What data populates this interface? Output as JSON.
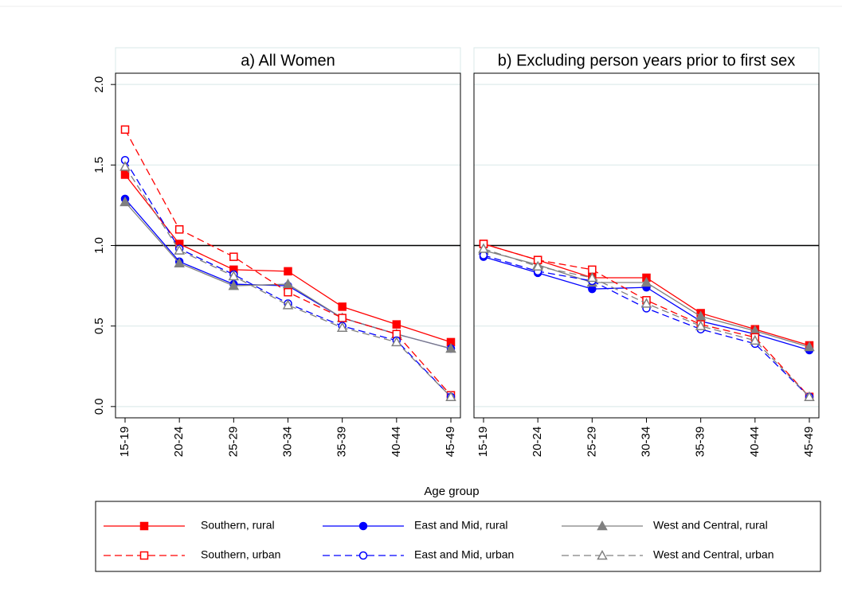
{
  "chart_data": [
    {
      "type": "line",
      "title": "a) All Women",
      "xlabel": "Age group",
      "categories": [
        "15-19",
        "20-24",
        "25-29",
        "30-34",
        "35-39",
        "40-44",
        "45-49"
      ],
      "ylim": [
        -0.07,
        2.07
      ],
      "yticks": [
        {
          "value": 0,
          "label": "0.0"
        },
        {
          "value": 0.5,
          "label": "0.5"
        },
        {
          "value": 1,
          "label": "1.0"
        },
        {
          "value": 1.5,
          "label": "1.5"
        },
        {
          "value": 2,
          "label": "2.0"
        }
      ],
      "grid": true,
      "reference_line": 1,
      "series": [
        {
          "name": "Southern, rural",
          "color": "#ff0000",
          "marker": "square",
          "filled": true,
          "dashed": false,
          "values": [
            1.44,
            1.01,
            0.85,
            0.84,
            0.62,
            0.51,
            0.4
          ]
        },
        {
          "name": "East and Mid, rural",
          "color": "#0000ff",
          "marker": "circle",
          "filled": true,
          "dashed": false,
          "values": [
            1.29,
            0.9,
            0.76,
            0.75,
            0.55,
            0.45,
            0.36
          ]
        },
        {
          "name": "West and Central, rural",
          "color": "#808080",
          "marker": "triangle",
          "filled": true,
          "dashed": false,
          "values": [
            1.27,
            0.89,
            0.75,
            0.76,
            0.55,
            0.45,
            0.36
          ]
        },
        {
          "name": "Southern, urban",
          "color": "#ff0000",
          "marker": "square",
          "filled": false,
          "dashed": true,
          "values": [
            1.72,
            1.1,
            0.93,
            0.71,
            0.55,
            0.45,
            0.07
          ]
        },
        {
          "name": "East and Mid, urban",
          "color": "#0000ff",
          "marker": "circle",
          "filled": false,
          "dashed": true,
          "values": [
            1.53,
            0.98,
            0.82,
            0.64,
            0.5,
            0.41,
            0.06
          ]
        },
        {
          "name": "West and Central, urban",
          "color": "#808080",
          "marker": "triangle",
          "filled": false,
          "dashed": true,
          "values": [
            1.49,
            0.97,
            0.81,
            0.63,
            0.49,
            0.4,
            0.06
          ]
        }
      ]
    },
    {
      "type": "line",
      "title": "b) Excluding person years prior to first sex",
      "categories": [
        "15-19",
        "20-24",
        "25-29",
        "30-34",
        "35-39",
        "40-44",
        "45-49"
      ],
      "ylim": [
        -0.07,
        2.07
      ],
      "yticks": [
        0,
        0.5,
        1,
        1.5,
        2
      ],
      "grid": true,
      "reference_line": 1,
      "series": [
        {
          "name": "Southern, rural",
          "color": "#ff0000",
          "marker": "square",
          "filled": true,
          "dashed": false,
          "values": [
            1.01,
            0.91,
            0.8,
            0.8,
            0.58,
            0.48,
            0.38
          ]
        },
        {
          "name": "East and Mid, rural",
          "color": "#0000ff",
          "marker": "circle",
          "filled": true,
          "dashed": false,
          "values": [
            0.93,
            0.83,
            0.73,
            0.74,
            0.53,
            0.45,
            0.35
          ]
        },
        {
          "name": "West and Central, rural",
          "color": "#808080",
          "marker": "triangle",
          "filled": true,
          "dashed": false,
          "values": [
            0.97,
            0.88,
            0.77,
            0.77,
            0.56,
            0.47,
            0.37
          ]
        },
        {
          "name": "Southern, urban",
          "color": "#ff0000",
          "marker": "square",
          "filled": false,
          "dashed": true,
          "values": [
            1.01,
            0.91,
            0.85,
            0.66,
            0.51,
            0.43,
            0.06
          ]
        },
        {
          "name": "East and Mid, urban",
          "color": "#0000ff",
          "marker": "circle",
          "filled": false,
          "dashed": true,
          "values": [
            0.94,
            0.84,
            0.78,
            0.61,
            0.48,
            0.39,
            0.06
          ]
        },
        {
          "name": "West and Central, urban",
          "color": "#808080",
          "marker": "triangle",
          "filled": false,
          "dashed": true,
          "values": [
            0.98,
            0.87,
            0.8,
            0.64,
            0.5,
            0.41,
            0.06
          ]
        }
      ]
    }
  ]
}
